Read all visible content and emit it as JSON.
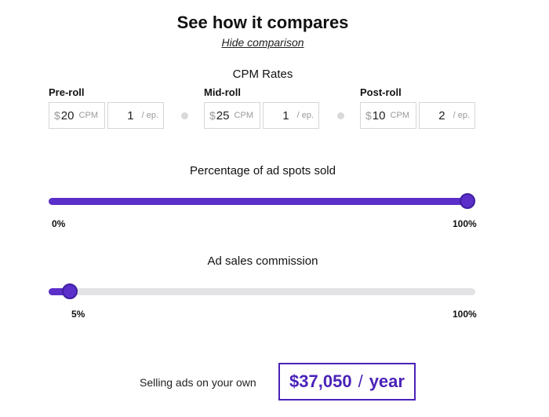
{
  "header": {
    "title": "See how it compares",
    "hide_link": "Hide comparison"
  },
  "cpm": {
    "section_title": "CPM Rates",
    "currency_symbol": "$",
    "cpm_unit": "CPM",
    "per_episode_unit": "/ ep.",
    "groups": [
      {
        "label": "Pre-roll",
        "price": "20",
        "count": "1"
      },
      {
        "label": "Mid-roll",
        "price": "25",
        "count": "1"
      },
      {
        "label": "Post-roll",
        "price": "10",
        "count": "2"
      }
    ]
  },
  "sold_slider": {
    "title": "Percentage of ad spots sold",
    "min_label": "0%",
    "max_label": "100%",
    "value_percent": 100
  },
  "commission_slider": {
    "title": "Ad sales commission",
    "value_label": "5%",
    "max_label": "100%",
    "value_percent": 5
  },
  "result": {
    "label": "Selling ads on your own",
    "amount": "$37,050",
    "separator": "/",
    "period": "year"
  },
  "colors": {
    "accent": "#5b2fc9",
    "track": "#e3e3e6"
  }
}
